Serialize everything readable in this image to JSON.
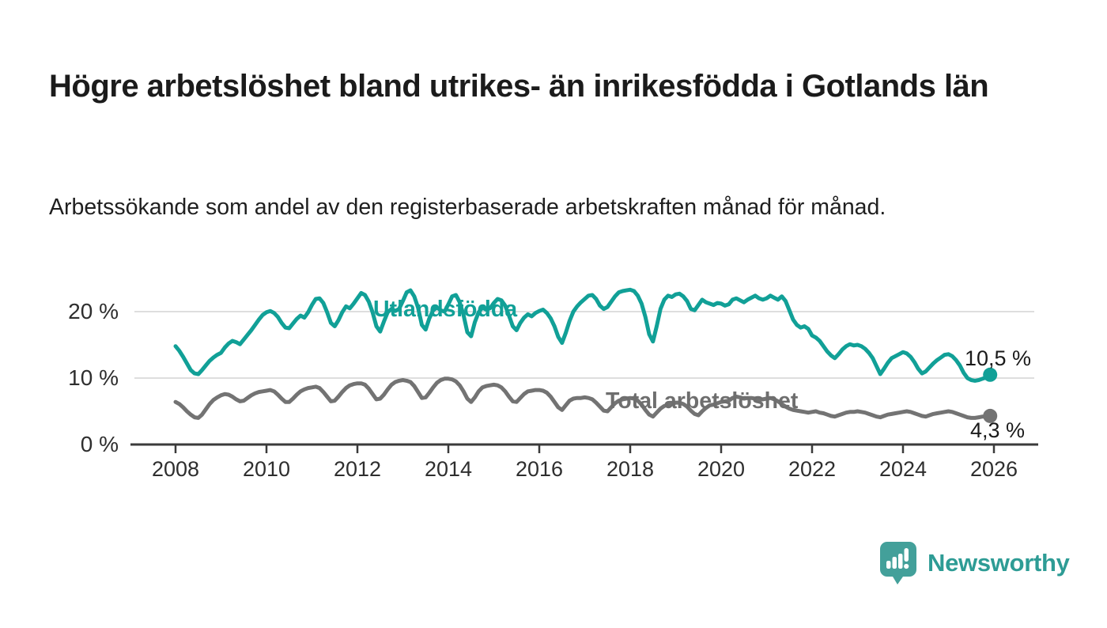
{
  "header": {
    "title": "Högre arbetslöshet bland utrikes- än inrikesfödda i Gotlands län",
    "subtitle": "Arbetssökande som andel av den registerbaserade arbetskraften månad för månad."
  },
  "branding": {
    "logo_text": "Newsworthy",
    "logo_icon": "speech-bubble-bar-chart-icon",
    "logo_color": "#2E9C95",
    "logo_bubble_color": "#43A09A"
  },
  "chart_data": {
    "type": "line",
    "title": "Högre arbetslöshet bland utrikes- än inrikesfödda i Gotlands län",
    "subtitle": "Arbetssökande som andel av den registerbaserade arbetskraften månad för månad.",
    "xlabel": "",
    "ylabel": "",
    "x_unit": "year, monthly resolution",
    "x_start": 2008.0,
    "x_step_months": 1,
    "xlim": [
      2007.0,
      2026.9
    ],
    "ylim": [
      0,
      25
    ],
    "grid": "horizontal",
    "x_ticks": [
      2008,
      2010,
      2012,
      2014,
      2016,
      2018,
      2020,
      2022,
      2024,
      2026
    ],
    "y_ticks": [
      {
        "value": 0,
        "label": "0 %"
      },
      {
        "value": 10,
        "label": "10 %"
      },
      {
        "value": 20,
        "label": "20 %"
      }
    ],
    "series": [
      {
        "name": "Utlandsfödda",
        "color": "#11A097",
        "end_value": 10.5,
        "end_label": "10,5 %",
        "values": [
          14.8,
          14.1,
          13.2,
          12.2,
          11.2,
          10.7,
          10.6,
          11.2,
          11.9,
          12.6,
          13.1,
          13.5,
          13.8,
          14.6,
          15.2,
          15.6,
          15.4,
          15.1,
          15.8,
          16.5,
          17.2,
          18.0,
          18.8,
          19.5,
          19.9,
          20.1,
          19.8,
          19.2,
          18.3,
          17.6,
          17.5,
          18.2,
          18.9,
          19.4,
          19.1,
          19.9,
          21.0,
          21.9,
          22.0,
          21.3,
          19.9,
          18.3,
          17.8,
          18.7,
          19.9,
          20.8,
          20.5,
          21.2,
          22.0,
          22.8,
          22.5,
          21.5,
          19.9,
          17.8,
          17.0,
          18.5,
          19.9,
          20.4,
          20.1,
          20.4,
          21.6,
          22.9,
          23.2,
          22.3,
          20.6,
          18.0,
          17.3,
          19.0,
          20.2,
          20.6,
          20.2,
          20.0,
          21.1,
          22.3,
          22.5,
          21.4,
          19.5,
          16.9,
          16.3,
          18.4,
          19.9,
          20.6,
          20.3,
          20.5,
          21.3,
          21.9,
          21.7,
          20.9,
          19.4,
          17.8,
          17.2,
          18.3,
          19.1,
          19.6,
          19.3,
          19.8,
          20.1,
          20.3,
          19.8,
          19.0,
          17.8,
          16.2,
          15.3,
          16.8,
          18.6,
          20.0,
          20.8,
          21.4,
          21.9,
          22.4,
          22.5,
          21.9,
          20.9,
          20.4,
          20.7,
          21.5,
          22.3,
          22.9,
          23.1,
          23.2,
          23.3,
          23.1,
          22.4,
          21.2,
          19.2,
          16.6,
          15.5,
          17.8,
          20.4,
          21.8,
          22.4,
          22.2,
          22.6,
          22.7,
          22.3,
          21.6,
          20.4,
          20.2,
          21.0,
          21.8,
          21.4,
          21.2,
          21.0,
          21.3,
          21.2,
          20.9,
          21.1,
          21.8,
          22.0,
          21.7,
          21.4,
          21.8,
          22.1,
          22.4,
          22.0,
          21.8,
          22.0,
          22.4,
          22.1,
          21.8,
          22.3,
          21.6,
          20.2,
          18.8,
          18.0,
          17.6,
          17.8,
          17.4,
          16.4,
          16.1,
          15.6,
          14.8,
          14.0,
          13.4,
          13.0,
          13.6,
          14.3,
          14.8,
          15.1,
          14.9,
          15.0,
          14.8,
          14.4,
          13.8,
          13.0,
          11.8,
          10.6,
          11.4,
          12.3,
          13.0,
          13.3,
          13.6,
          13.9,
          13.7,
          13.2,
          12.4,
          11.4,
          10.7,
          11.0,
          11.6,
          12.2,
          12.7,
          13.1,
          13.5,
          13.6,
          13.3,
          12.7,
          11.9,
          10.8,
          10.0,
          9.7,
          9.6,
          9.7,
          9.9,
          10.1,
          10.5
        ]
      },
      {
        "name": "Total arbetslöshet",
        "color": "#737373",
        "end_value": 4.3,
        "end_label": "4,3 %",
        "values": [
          6.4,
          6.1,
          5.6,
          5.0,
          4.5,
          4.1,
          4.0,
          4.5,
          5.3,
          6.1,
          6.7,
          7.1,
          7.4,
          7.6,
          7.5,
          7.2,
          6.8,
          6.5,
          6.6,
          7.0,
          7.4,
          7.7,
          7.9,
          8.0,
          8.1,
          8.2,
          8.0,
          7.5,
          6.9,
          6.4,
          6.4,
          6.9,
          7.5,
          8.0,
          8.3,
          8.5,
          8.6,
          8.7,
          8.5,
          7.9,
          7.2,
          6.5,
          6.6,
          7.2,
          7.9,
          8.5,
          8.9,
          9.1,
          9.2,
          9.2,
          9.0,
          8.4,
          7.6,
          6.8,
          6.9,
          7.5,
          8.3,
          9.0,
          9.4,
          9.6,
          9.7,
          9.6,
          9.4,
          8.8,
          7.9,
          7.0,
          7.1,
          7.8,
          8.6,
          9.3,
          9.7,
          9.9,
          9.9,
          9.8,
          9.5,
          8.9,
          8.0,
          6.9,
          6.4,
          7.1,
          8.0,
          8.6,
          8.8,
          8.9,
          9.0,
          8.9,
          8.6,
          8.0,
          7.2,
          6.5,
          6.4,
          7.0,
          7.6,
          8.0,
          8.1,
          8.2,
          8.2,
          8.1,
          7.8,
          7.2,
          6.4,
          5.6,
          5.2,
          5.9,
          6.6,
          6.9,
          7.0,
          7.0,
          7.1,
          7.0,
          6.8,
          6.3,
          5.7,
          5.1,
          5.0,
          5.6,
          6.2,
          6.6,
          6.8,
          6.9,
          7.0,
          6.9,
          6.6,
          6.0,
          5.2,
          4.5,
          4.2,
          4.8,
          5.4,
          5.8,
          6.0,
          6.1,
          6.3,
          6.3,
          6.1,
          5.7,
          5.1,
          4.6,
          4.4,
          5.0,
          5.5,
          5.9,
          6.0,
          6.2,
          6.4,
          6.5,
          6.6,
          7.0,
          7.2,
          7.1,
          6.9,
          7.0,
          7.0,
          6.9,
          6.7,
          6.8,
          6.9,
          7.0,
          6.8,
          6.5,
          6.1,
          5.7,
          5.4,
          5.2,
          5.1,
          5.0,
          4.9,
          4.8,
          4.9,
          5.0,
          4.8,
          4.7,
          4.5,
          4.3,
          4.2,
          4.4,
          4.6,
          4.8,
          4.9,
          4.9,
          5.0,
          4.9,
          4.8,
          4.6,
          4.4,
          4.2,
          4.1,
          4.3,
          4.5,
          4.6,
          4.7,
          4.8,
          4.9,
          5.0,
          4.9,
          4.7,
          4.5,
          4.3,
          4.2,
          4.4,
          4.6,
          4.7,
          4.8,
          4.9,
          5.0,
          4.9,
          4.7,
          4.5,
          4.3,
          4.1,
          4.0,
          4.0,
          4.1,
          4.2,
          4.2,
          4.3
        ]
      }
    ],
    "legend_position": "inline-labels-on-lines",
    "colors": {
      "gridline": "#dedede",
      "axis": "#3b3b3b",
      "tick_text": "#2e2e2e",
      "value_label_text": "#1a1a1a"
    }
  }
}
